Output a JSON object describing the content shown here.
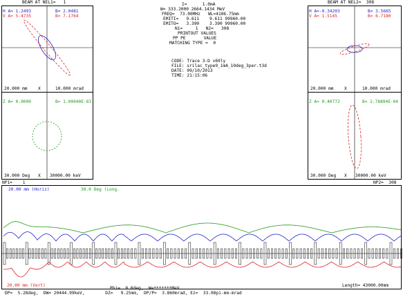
{
  "left_panel": {
    "title": "BEAM AT NEL1=   1",
    "h_a": "H A= 1.2493",
    "h_b": "B= 2.0481",
    "v_a": "V A= 5.4735",
    "v_b": "B= 7.1764",
    "scale_mm": "20.000 mm",
    "x_label1": "X",
    "scale_mrad": "10.000 mrad",
    "z_a": "Z A= 0.0000",
    "z_b": "B= 1.00040E-03",
    "scale_deg": "30.000 Deg",
    "x_label2": "X",
    "scale_kev": "30000.00 keV"
  },
  "right_panel": {
    "title": "BEAM AT NEL2=  308",
    "h_a": "H A=-0.34203",
    "h_b": "B= 3.5665",
    "v_a": "V A= 1.5145",
    "v_b": "B= 6.7180",
    "scale_mm": "20.000 mm",
    "x_label1": "X",
    "scale_mrad": "10.000 mrad",
    "z_a": "Z A= 0.40772",
    "z_b": "B= 2.78894E-04",
    "scale_deg": "30.000 Deg",
    "x_label2": "X",
    "scale_kev": "30000.00 keV"
  },
  "center_info": {
    "line1": "I=      1.0mA",
    "line2": "W= 333.2000 2664.1434 MeV",
    "line3": "FREQ=  73.00MHz   WL=4106.75mm",
    "line4": "EMITI=   9.611    9.611 99960.00",
    "line5": "EMITO=   3.390    3.390 99960.00",
    "line6": "N1=     1   N2=   308",
    "line7": "PRINTOUT VALUES",
    "line8": "PP PE       VALUE",
    "line9": "MATCHING TYPE =  0",
    "code": "CODE: Trace 3-D v69ly",
    "file": "FILE: srilac_type9_1mA_10deg_3per.t3d",
    "date": "DATE: 09/10/2013",
    "time": "TIME: 21:15:06"
  },
  "bottom_plot": {
    "np1": "NP1=    1",
    "np2": "NP2=  308",
    "horiz_label": "20.00 mm (Horiz)",
    "long_label": "30.0 Deg (Long.",
    "vert_label": "20.00 mm (Vert)",
    "length": "Length= 43000.00mm",
    "phi": "Phi=  0.0deg,  W=*******MeV",
    "footer": "DP=  5.28deg,  DW= 20444.99keV,        DZ=   9.25mm,  DP/P=  3.860mrad, Ez=  33.08pi-mm-mrad"
  },
  "colors": {
    "horiz": "#2222cc",
    "vert": "#dd2222",
    "long": "#229922"
  }
}
